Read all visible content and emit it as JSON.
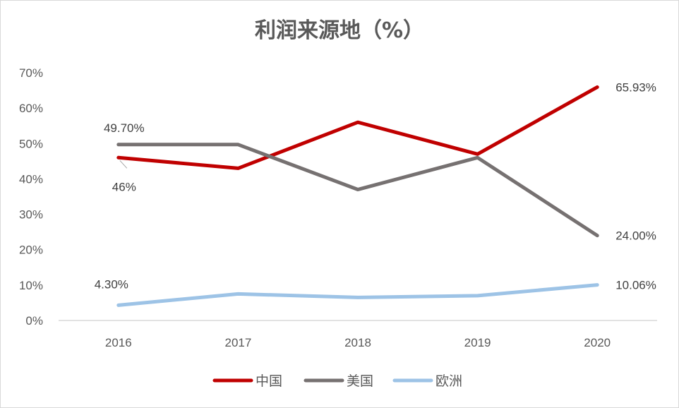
{
  "chart_data": {
    "type": "line",
    "title": "利润来源地（%）",
    "xlabel": "",
    "ylabel": "",
    "categories": [
      "2016",
      "2017",
      "2018",
      "2019",
      "2020"
    ],
    "ylim": [
      0,
      70
    ],
    "yticks": [
      0,
      10,
      20,
      30,
      40,
      50,
      60,
      70
    ],
    "ytick_labels": [
      "0%",
      "10%",
      "20%",
      "30%",
      "40%",
      "50%",
      "60%",
      "70%"
    ],
    "grid": false,
    "legend_position": "bottom",
    "series": [
      {
        "name": "中国",
        "color": "#c00000",
        "values": [
          46,
          43,
          56,
          47,
          65.93
        ],
        "data_labels": [
          {
            "index": 0,
            "text": "46%"
          },
          {
            "index": 4,
            "text": "65.93%"
          }
        ]
      },
      {
        "name": "美国",
        "color": "#767171",
        "values": [
          49.7,
          49.7,
          37,
          46,
          24
        ],
        "data_labels": [
          {
            "index": 0,
            "text": "49.70%"
          },
          {
            "index": 4,
            "text": "24.00%"
          }
        ]
      },
      {
        "name": "欧洲",
        "color": "#9dc3e6",
        "values": [
          4.3,
          7.5,
          6.5,
          7,
          10.06
        ],
        "data_labels": [
          {
            "index": 0,
            "text": "4.30%"
          },
          {
            "index": 4,
            "text": "10.06%"
          }
        ]
      }
    ]
  }
}
